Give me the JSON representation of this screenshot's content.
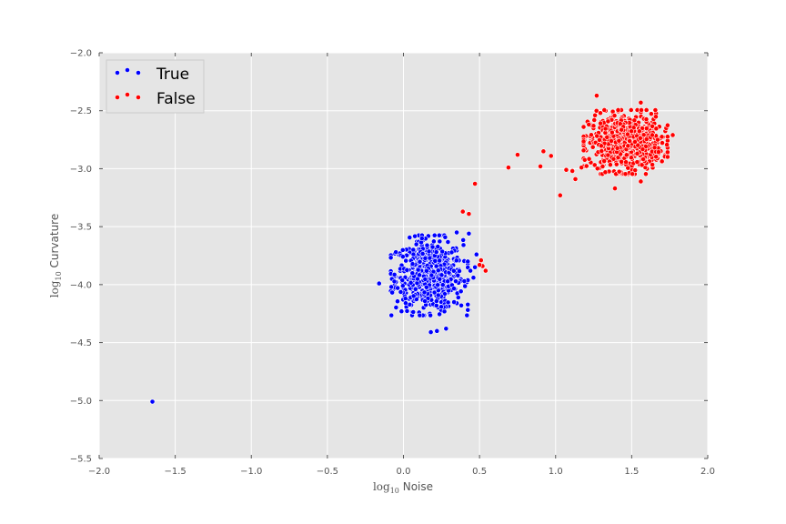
{
  "chart_data": {
    "type": "scatter",
    "title": "",
    "xlabel": "log10 Noise",
    "ylabel": "log10 Curvature",
    "xlabel_parts": {
      "base": "log",
      "sub": "10",
      "text": " Noise"
    },
    "ylabel_parts": {
      "base": "log",
      "sub": "10",
      "text": " Curvature"
    },
    "xlim": [
      -2.0,
      2.0
    ],
    "ylim": [
      -5.5,
      -2.0
    ],
    "xticks": [
      -2.0,
      -1.5,
      -1.0,
      -0.5,
      0.0,
      0.5,
      1.0,
      1.5,
      2.0
    ],
    "yticks": [
      -5.5,
      -5.0,
      -4.5,
      -4.0,
      -3.5,
      -3.0,
      -2.5,
      -2.0
    ],
    "xtick_labels": [
      "−2.0",
      "−1.5",
      "−1.0",
      "−0.5",
      "0.0",
      "0.5",
      "1.0",
      "1.5",
      "2.0"
    ],
    "ytick_labels": [
      "−5.5",
      "−5.0",
      "−4.5",
      "−4.0",
      "−3.5",
      "−3.0",
      "−2.5",
      "−2.0"
    ],
    "grid": true,
    "legend_position": "top-left",
    "series": [
      {
        "name": "True",
        "color": "#0000ff",
        "cluster": {
          "center": [
            0.17,
            -3.92
          ],
          "spread": [
            0.11,
            0.15
          ],
          "count": 650
        },
        "points": [
          [
            -1.65,
            -5.01
          ],
          [
            -0.16,
            -3.99
          ],
          [
            0.35,
            -3.55
          ],
          [
            0.43,
            -3.56
          ],
          [
            0.47,
            -3.85
          ],
          [
            0.48,
            -3.74
          ],
          [
            0.46,
            -3.94
          ],
          [
            0.44,
            -3.88
          ],
          [
            0.28,
            -4.38
          ],
          [
            0.22,
            -4.4
          ],
          [
            0.18,
            -4.41
          ],
          [
            -0.05,
            -3.72
          ],
          [
            -0.08,
            -4.02
          ],
          [
            0.4,
            -3.97
          ],
          [
            0.38,
            -4.18
          ]
        ]
      },
      {
        "name": "False",
        "color": "#ff0000",
        "cluster": {
          "center": [
            1.46,
            -2.77
          ],
          "spread": [
            0.12,
            0.12
          ],
          "count": 700
        },
        "points": [
          [
            0.47,
            -3.13
          ],
          [
            0.39,
            -3.37
          ],
          [
            0.43,
            -3.39
          ],
          [
            0.51,
            -3.79
          ],
          [
            0.52,
            -3.84
          ],
          [
            0.54,
            -3.88
          ],
          [
            0.5,
            -3.83
          ],
          [
            0.69,
            -2.99
          ],
          [
            0.75,
            -2.88
          ],
          [
            0.9,
            -2.98
          ],
          [
            0.92,
            -2.85
          ],
          [
            0.97,
            -2.89
          ],
          [
            1.03,
            -3.23
          ],
          [
            1.07,
            -3.01
          ],
          [
            1.11,
            -3.02
          ],
          [
            1.13,
            -3.09
          ],
          [
            1.17,
            -2.99
          ],
          [
            1.27,
            -2.37
          ],
          [
            1.56,
            -2.43
          ],
          [
            1.77,
            -2.71
          ],
          [
            1.56,
            -3.11
          ],
          [
            1.39,
            -3.17
          ]
        ]
      }
    ]
  }
}
